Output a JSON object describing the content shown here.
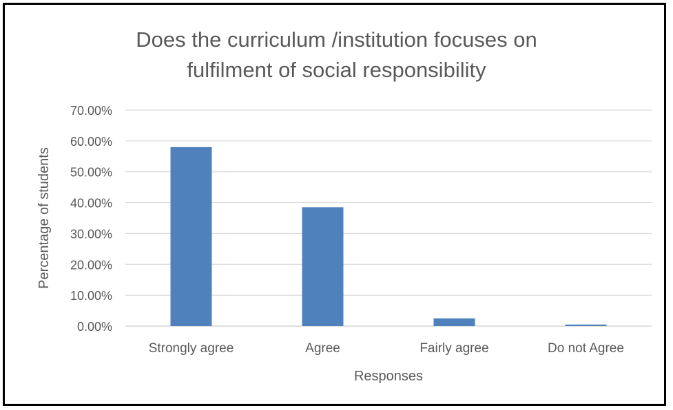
{
  "chart_data": {
    "type": "bar",
    "title": "Does the curriculum /institution focuses on\nfulfilment of social responsibility",
    "xlabel": "Responses",
    "ylabel": "Percentage of students",
    "categories": [
      "Strongly agree",
      "Agree",
      "Fairly agree",
      "Do not Agree"
    ],
    "series": [
      {
        "values": [
          0.58,
          0.385,
          0.025,
          0.005
        ]
      }
    ],
    "ylim": [
      0,
      0.7
    ],
    "yticks": [
      "0.00%",
      "10.00%",
      "20.00%",
      "30.00%",
      "40.00%",
      "50.00%",
      "60.00%",
      "70.00%"
    ],
    "grid": true,
    "legend": "none",
    "colors": {
      "bar": "#4f81bd",
      "grid": "#d9d9d9",
      "text": "#595959",
      "frame": "#000000"
    }
  }
}
